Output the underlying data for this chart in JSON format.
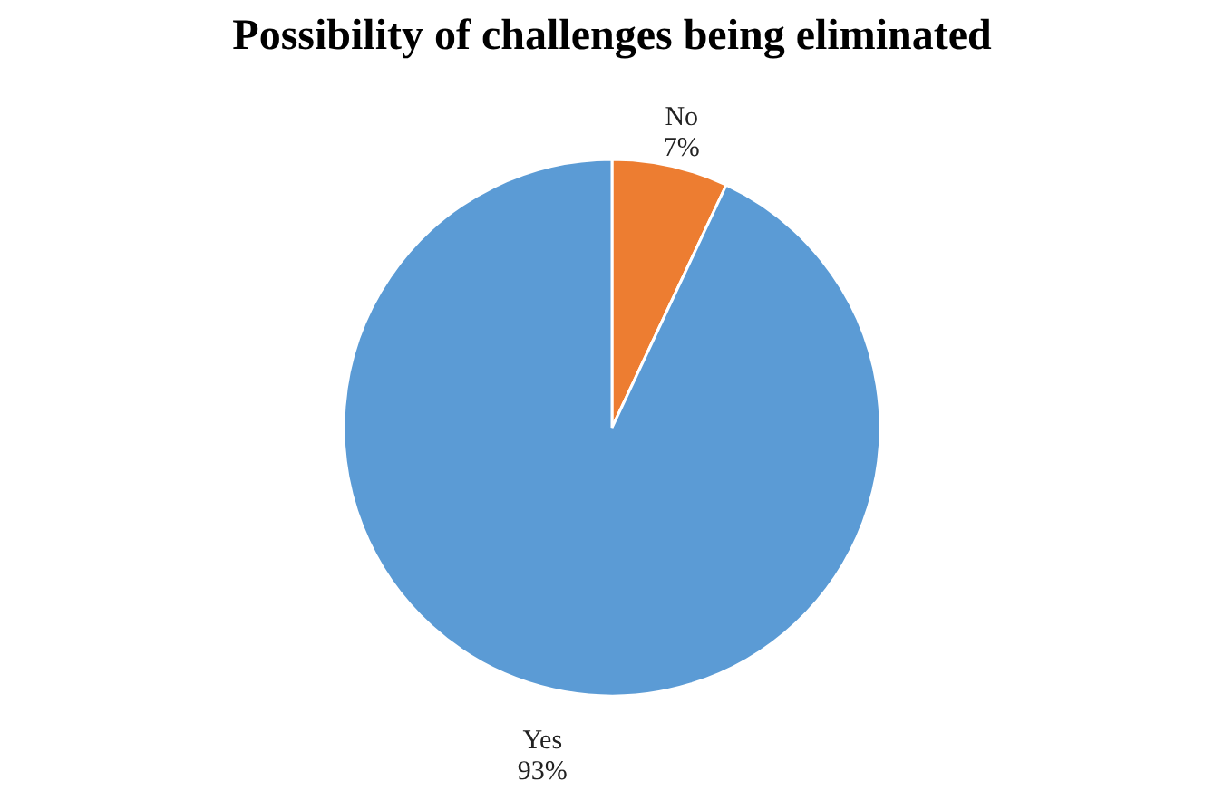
{
  "chart_data": {
    "type": "pie",
    "title": "Possibility of challenges being eliminated",
    "categories": [
      "No",
      "Yes"
    ],
    "values": [
      7,
      93
    ],
    "colors": [
      "#ed7d31",
      "#5b9bd5"
    ],
    "value_labels": [
      "7%",
      "93%"
    ],
    "legend": false
  }
}
